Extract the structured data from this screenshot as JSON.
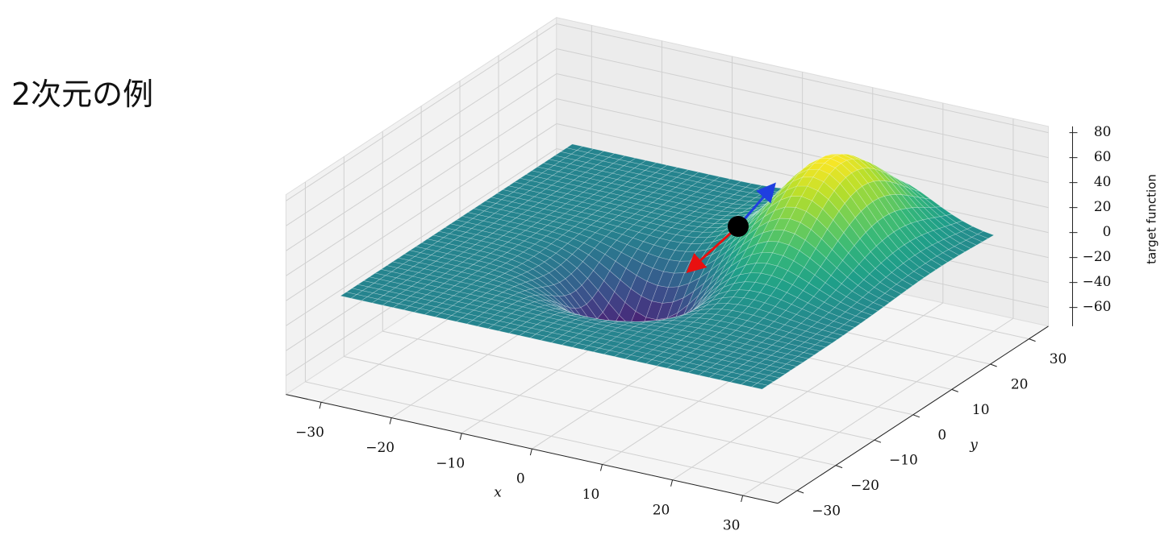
{
  "heading": "2次元の例",
  "chart_data": {
    "type": "surface3d",
    "xlabel": "x",
    "ylabel": "y",
    "zlabel": "target function",
    "xlim": [
      -35,
      35
    ],
    "ylim": [
      -35,
      35
    ],
    "zlim": [
      -75,
      85
    ],
    "xticks": [
      {
        "value": -30,
        "label": "−30"
      },
      {
        "value": -20,
        "label": "−20"
      },
      {
        "value": -10,
        "label": "−10"
      },
      0,
      10,
      20,
      30
    ],
    "yticks": [
      {
        "value": -30,
        "label": "−30"
      },
      {
        "value": -20,
        "label": "−20"
      },
      {
        "value": -10,
        "label": "−10"
      },
      0,
      10,
      20,
      30
    ],
    "zticks": [
      {
        "value": -60,
        "label": "−60"
      },
      {
        "value": -40,
        "label": "−40"
      },
      {
        "value": -20,
        "label": "−20"
      },
      0,
      20,
      40,
      60,
      80
    ],
    "grid": true,
    "colormap": "viridis"
  }
}
